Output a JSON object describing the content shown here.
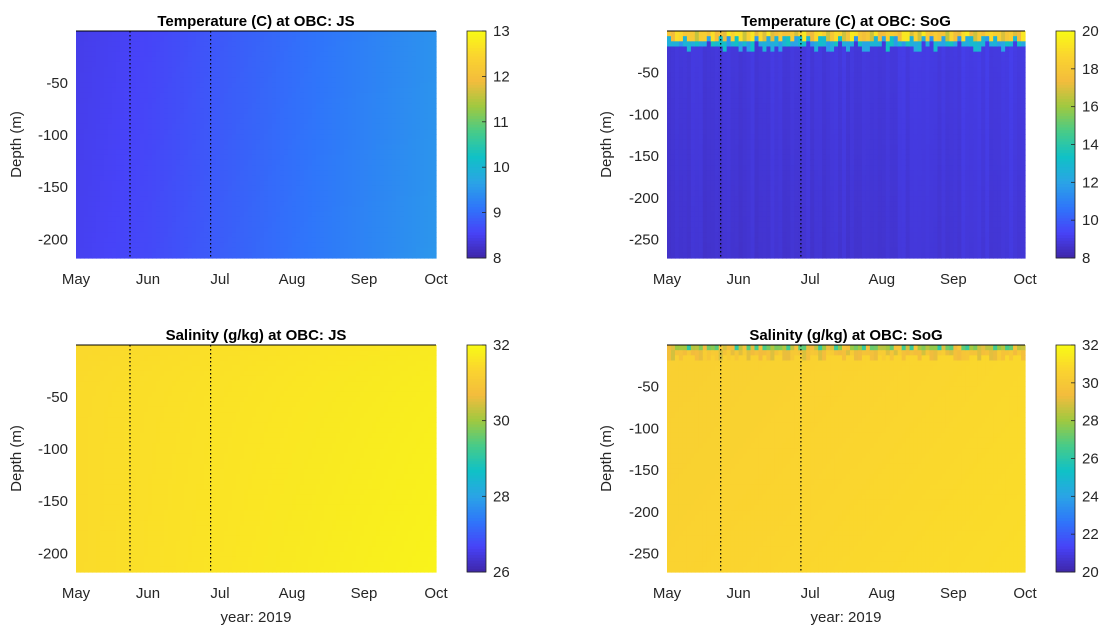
{
  "colormap": [
    "#3e26a8",
    "#4743f8",
    "#2f76fa",
    "#2aa4e6",
    "#10c1c6",
    "#47cb89",
    "#9fc940",
    "#f3bc3d",
    "#fad42f",
    "#f9fb15"
  ],
  "chart_data": [
    {
      "type": "heatmap",
      "title": "Temperature (C) at OBC: JS",
      "ylabel": "Depth (m)",
      "xlabel": "",
      "xticks": [
        "May",
        "Jun",
        "Jul",
        "Aug",
        "Sep",
        "Oct"
      ],
      "yticks": [
        "-50",
        "-100",
        "-150",
        "-200"
      ],
      "ytick_values": [
        -50,
        -100,
        -150,
        -200
      ],
      "ylim": [
        -218,
        0
      ],
      "xlim_months": [
        0,
        5
      ],
      "clim": [
        8,
        13
      ],
      "cticks": [
        "8",
        "9",
        "10",
        "11",
        "12",
        "13"
      ],
      "cbar_values": [
        8,
        9,
        10,
        11,
        12,
        13
      ],
      "vlines_months": [
        0.75,
        1.87
      ],
      "field": {
        "kind": "js_temp",
        "surface_value": null,
        "values_note": "approx 8.5 in May rising to 9.4 by Oct"
      }
    },
    {
      "type": "heatmap",
      "title": "Temperature (C) at OBC: SoG",
      "ylabel": "Depth (m)",
      "xlabel": "",
      "xticks": [
        "May",
        "Jun",
        "Jul",
        "Aug",
        "Sep",
        "Oct"
      ],
      "yticks": [
        "-50",
        "-100",
        "-150",
        "-200",
        "-250"
      ],
      "ytick_values": [
        -50,
        -100,
        -150,
        -200,
        -250
      ],
      "ylim": [
        -272,
        0
      ],
      "xlim_months": [
        0,
        5
      ],
      "clim": [
        8,
        20
      ],
      "cticks": [
        "8",
        "10",
        "12",
        "14",
        "16",
        "18",
        "20"
      ],
      "cbar_values": [
        8,
        10,
        12,
        14,
        16,
        18,
        20
      ],
      "vlines_months": [
        0.75,
        1.87
      ],
      "field": {
        "kind": "sog_temp"
      }
    },
    {
      "type": "heatmap",
      "title": "Salinity (g/kg) at OBC: JS",
      "ylabel": "Depth (m)",
      "xlabel": "year: 2019",
      "xticks": [
        "May",
        "Jun",
        "Jul",
        "Aug",
        "Sep",
        "Oct"
      ],
      "yticks": [
        "-50",
        "-100",
        "-150",
        "-200"
      ],
      "ytick_values": [
        -50,
        -100,
        -150,
        -200
      ],
      "ylim": [
        -218,
        0
      ],
      "xlim_months": [
        0,
        5
      ],
      "clim": [
        26,
        32
      ],
      "cticks": [
        "26",
        "28",
        "30",
        "32"
      ],
      "cbar_values": [
        26,
        28,
        30,
        32
      ],
      "vlines_months": [
        0.75,
        1.87
      ],
      "field": {
        "kind": "js_sal"
      }
    },
    {
      "type": "heatmap",
      "title": "Salinity (g/kg) at OBC: SoG",
      "ylabel": "Depth (m)",
      "xlabel": "year: 2019",
      "xticks": [
        "May",
        "Jun",
        "Jul",
        "Aug",
        "Sep",
        "Oct"
      ],
      "yticks": [
        "-50",
        "-100",
        "-150",
        "-200",
        "-250"
      ],
      "ytick_values": [
        -50,
        -100,
        -150,
        -200,
        -250
      ],
      "ylim": [
        -272,
        0
      ],
      "xlim_months": [
        0,
        5
      ],
      "clim": [
        20,
        32
      ],
      "cticks": [
        "20",
        "22",
        "24",
        "26",
        "28",
        "30",
        "32"
      ],
      "cbar_values": [
        20,
        22,
        24,
        26,
        28,
        30,
        32
      ],
      "vlines_months": [
        0.75,
        1.87
      ],
      "field": {
        "kind": "sog_sal"
      }
    }
  ]
}
